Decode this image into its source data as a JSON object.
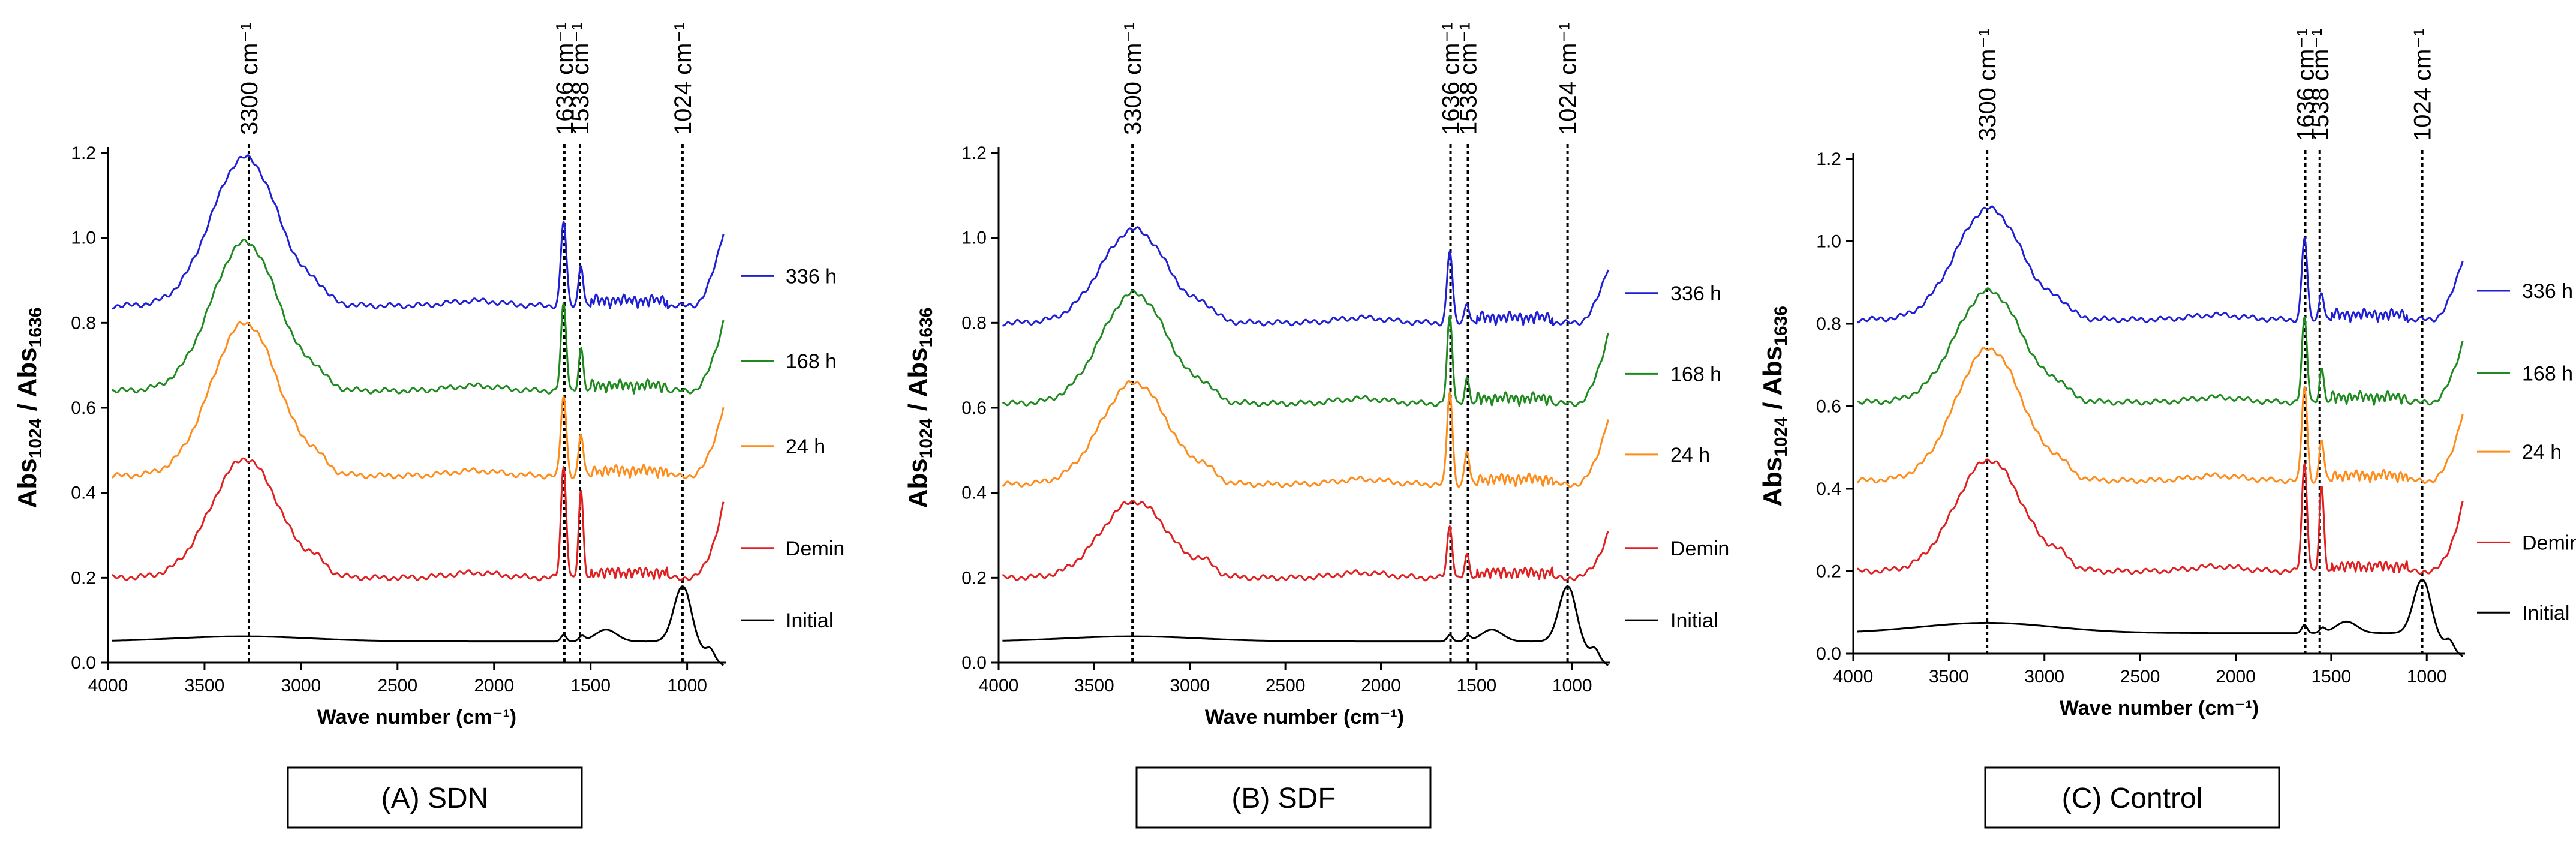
{
  "chart_data": [
    {
      "type": "line",
      "caption": "(A) SDN",
      "xlabel": "Wave number (cm⁻¹)",
      "ylabel": {
        "main": "Abs",
        "sub1": "1024",
        "sep": " / Abs",
        "sub2": "1636"
      },
      "xlim": [
        4000,
        800
      ],
      "ylim": [
        0,
        1.2
      ],
      "xticks": [
        4000,
        3500,
        3000,
        2500,
        2000,
        1500,
        1000
      ],
      "xtick_labels": [
        "4000",
        "3500",
        "3000",
        "2500",
        "2000",
        "1500",
        "1000"
      ],
      "yticks": [
        0,
        0.2,
        0.4,
        0.6,
        0.8,
        1.0,
        1.2
      ],
      "ytick_labels": [
        "0.0",
        "0.2",
        "0.4",
        "0.6",
        "0.8",
        "1.0",
        "1.2"
      ],
      "peaks": [
        {
          "x": 3270,
          "label": "3300 cm⁻¹"
        },
        {
          "x": 1636,
          "label": "1636 cm⁻¹"
        },
        {
          "x": 1555,
          "label": "1538 cm⁻¹"
        },
        {
          "x": 1024,
          "label": "1024 cm⁻¹"
        }
      ],
      "series": [
        {
          "name": "336 h",
          "color": "#1f1fd6",
          "baseline": 0.84,
          "amp": 0.35,
          "p1636": 0.2,
          "p1538": 0.1,
          "end": 1.04
        },
        {
          "name": "168 h",
          "color": "#1f8a1f",
          "baseline": 0.64,
          "amp": 0.35,
          "p1636": 0.2,
          "p1538": 0.1,
          "end": 0.83
        },
        {
          "name": "24 h",
          "color": "#ff8c1a",
          "baseline": 0.44,
          "amp": 0.36,
          "p1636": 0.19,
          "p1538": 0.1,
          "end": 0.63
        },
        {
          "name": "Demin",
          "color": "#e02020",
          "baseline": 0.2,
          "amp": 0.28,
          "p1636": 0.26,
          "p1538": 0.2,
          "end": 0.4
        },
        {
          "name": "Initial",
          "color": "#000000",
          "baseline": 0.05,
          "amp": 0.012,
          "p1636": 0.015,
          "p1538": 0.012,
          "end": 0.1
        }
      ]
    },
    {
      "type": "line",
      "caption": "(B) SDF",
      "xlabel": "Wave number (cm⁻¹)",
      "ylabel": {
        "main": "Abs",
        "sub1": "1024",
        "sep": " / Abs",
        "sub2": "1636"
      },
      "xlim": [
        4000,
        800
      ],
      "ylim": [
        0,
        1.2
      ],
      "xticks": [
        4000,
        3500,
        3000,
        2500,
        2000,
        1500,
        1000
      ],
      "xtick_labels": [
        "4000",
        "3500",
        "3000",
        "2500",
        "2000",
        "1500",
        "1000"
      ],
      "yticks": [
        0,
        0.2,
        0.4,
        0.6,
        0.8,
        1.0,
        1.2
      ],
      "ytick_labels": [
        "0.0",
        "0.2",
        "0.4",
        "0.6",
        "0.8",
        "1.0",
        "1.2"
      ],
      "peaks": [
        {
          "x": 3300,
          "label": "3300 cm⁻¹"
        },
        {
          "x": 1636,
          "label": "1636 cm⁻¹"
        },
        {
          "x": 1545,
          "label": "1538 cm⁻¹"
        },
        {
          "x": 1024,
          "label": "1024 cm⁻¹"
        }
      ],
      "series": [
        {
          "name": "336 h",
          "color": "#1f1fd6",
          "baseline": 0.8,
          "amp": 0.22,
          "p1636": 0.17,
          "p1538": 0.05,
          "end": 0.95
        },
        {
          "name": "168 h",
          "color": "#1f8a1f",
          "baseline": 0.61,
          "amp": 0.26,
          "p1636": 0.2,
          "p1538": 0.06,
          "end": 0.8
        },
        {
          "name": "24 h",
          "color": "#ff8c1a",
          "baseline": 0.42,
          "amp": 0.24,
          "p1636": 0.22,
          "p1538": 0.08,
          "end": 0.6
        },
        {
          "name": "Demin",
          "color": "#e02020",
          "baseline": 0.2,
          "amp": 0.18,
          "p1636": 0.12,
          "p1538": 0.05,
          "end": 0.32
        },
        {
          "name": "Initial",
          "color": "#000000",
          "baseline": 0.05,
          "amp": 0.012,
          "p1636": 0.015,
          "p1538": 0.012,
          "end": 0.1
        }
      ]
    },
    {
      "type": "line",
      "caption": "(C) Control",
      "xlabel": "Wave number (cm⁻¹)",
      "ylabel": {
        "main": "Abs",
        "sub1": "1024",
        "sep": " / Abs",
        "sub2": "1636"
      },
      "xlim": [
        4000,
        800
      ],
      "ylim": [
        0,
        1.2
      ],
      "xticks": [
        4000,
        3500,
        3000,
        2500,
        2000,
        1500,
        1000
      ],
      "xtick_labels": [
        "4000",
        "3500",
        "3000",
        "2500",
        "2000",
        "1500",
        "1000"
      ],
      "yticks": [
        0,
        0.2,
        0.4,
        0.6,
        0.8,
        1.0,
        1.2
      ],
      "ytick_labels": [
        "0.0",
        "0.2",
        "0.4",
        "0.6",
        "0.8",
        "1.0",
        "1.2"
      ],
      "peaks": [
        {
          "x": 3300,
          "label": "3300 cm⁻¹"
        },
        {
          "x": 1636,
          "label": "1636 cm⁻¹"
        },
        {
          "x": 1560,
          "label": "1538 cm⁻¹"
        },
        {
          "x": 1024,
          "label": "1024 cm⁻¹"
        }
      ],
      "series": [
        {
          "name": "336 h",
          "color": "#1f1fd6",
          "baseline": 0.81,
          "amp": 0.27,
          "p1636": 0.2,
          "p1538": 0.07,
          "end": 0.98
        },
        {
          "name": "168 h",
          "color": "#1f8a1f",
          "baseline": 0.61,
          "amp": 0.27,
          "p1636": 0.2,
          "p1538": 0.08,
          "end": 0.78
        },
        {
          "name": "24 h",
          "color": "#ff8c1a",
          "baseline": 0.42,
          "amp": 0.32,
          "p1636": 0.23,
          "p1538": 0.1,
          "end": 0.61
        },
        {
          "name": "Demin",
          "color": "#e02020",
          "baseline": 0.2,
          "amp": 0.27,
          "p1636": 0.26,
          "p1538": 0.2,
          "end": 0.39
        },
        {
          "name": "Initial",
          "color": "#000000",
          "baseline": 0.05,
          "amp": 0.025,
          "p1636": 0.02,
          "p1538": 0.012,
          "end": 0.1
        }
      ]
    }
  ]
}
